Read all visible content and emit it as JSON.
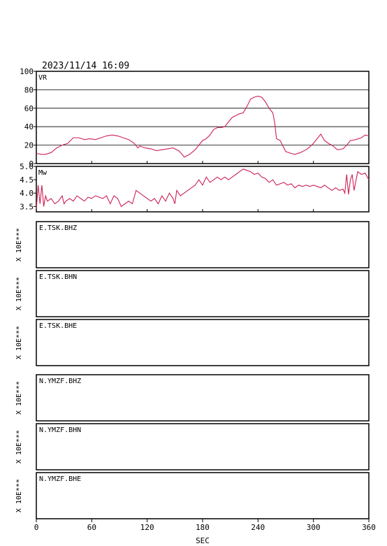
{
  "header": {
    "timestamp": "2023/11/14 16:09"
  },
  "colors": {
    "trace": "#cc2255",
    "frame": "#000000"
  },
  "chart_data": [
    {
      "type": "line",
      "label": "VR",
      "ylim": [
        0,
        100
      ],
      "yticks": [
        {
          "v": 0,
          "t": "0"
        },
        {
          "v": 20,
          "t": "20"
        },
        {
          "v": 40,
          "t": "40"
        },
        {
          "v": 60,
          "t": "60"
        },
        {
          "v": 80,
          "t": "80"
        },
        {
          "v": 100,
          "t": "100"
        }
      ],
      "grid": [
        20,
        40,
        60,
        80
      ],
      "x": [
        0,
        6,
        10,
        16,
        22,
        28,
        34,
        40,
        46,
        52,
        58,
        64,
        70,
        76,
        82,
        88,
        94,
        100,
        106,
        110,
        112,
        118,
        124,
        130,
        136,
        142,
        148,
        154,
        158,
        160,
        166,
        172,
        176,
        180,
        184,
        188,
        192,
        196,
        200,
        204,
        208,
        212,
        216,
        220,
        224,
        228,
        232,
        236,
        240,
        244,
        248,
        252,
        256,
        258,
        260,
        264,
        270,
        276,
        280,
        286,
        292,
        296,
        300,
        304,
        308,
        312,
        316,
        320,
        326,
        332,
        336,
        340,
        346,
        352,
        356,
        360
      ],
      "y": [
        11,
        10,
        10,
        12,
        17,
        20,
        22,
        28,
        28,
        26,
        27,
        26,
        28,
        30,
        31,
        30,
        28,
        26,
        22,
        17,
        19,
        17,
        16,
        14,
        15,
        16,
        17,
        14,
        10,
        7,
        10,
        15,
        20,
        25,
        27,
        31,
        37,
        39,
        39,
        40,
        45,
        50,
        52,
        54,
        55,
        62,
        70,
        72,
        73,
        72,
        67,
        60,
        55,
        45,
        27,
        25,
        13,
        11,
        10,
        12,
        15,
        18,
        22,
        27,
        32,
        25,
        22,
        20,
        15,
        16,
        20,
        25,
        26,
        28,
        31,
        30
      ],
      "xlim": [
        0,
        360
      ]
    },
    {
      "type": "line",
      "label": "Mw",
      "ylim": [
        3.3,
        5.0
      ],
      "yticks": [
        {
          "v": 3.5,
          "t": "3.5"
        },
        {
          "v": 4.0,
          "t": "4.0"
        },
        {
          "v": 4.5,
          "t": "4.5"
        },
        {
          "v": 5.0,
          "t": "5.0"
        }
      ],
      "x": [
        0,
        2,
        4,
        6,
        8,
        10,
        12,
        16,
        20,
        24,
        28,
        30,
        32,
        36,
        40,
        44,
        48,
        52,
        56,
        60,
        64,
        68,
        72,
        76,
        80,
        84,
        88,
        92,
        96,
        100,
        104,
        108,
        112,
        116,
        120,
        124,
        128,
        132,
        136,
        140,
        144,
        148,
        150,
        152,
        156,
        160,
        164,
        168,
        172,
        176,
        180,
        184,
        188,
        192,
        196,
        200,
        204,
        208,
        212,
        216,
        220,
        224,
        228,
        232,
        236,
        240,
        244,
        248,
        252,
        256,
        260,
        264,
        268,
        272,
        276,
        280,
        284,
        288,
        292,
        296,
        300,
        304,
        308,
        312,
        316,
        320,
        324,
        328,
        332,
        334,
        336,
        338,
        340,
        342,
        344,
        348,
        352,
        356,
        360
      ],
      "y": [
        3.4,
        4.3,
        3.6,
        4.3,
        3.5,
        3.9,
        3.7,
        3.8,
        3.6,
        3.7,
        3.9,
        3.6,
        3.7,
        3.8,
        3.7,
        3.9,
        3.8,
        3.7,
        3.85,
        3.8,
        3.9,
        3.85,
        3.8,
        3.9,
        3.6,
        3.9,
        3.8,
        3.5,
        3.6,
        3.7,
        3.6,
        4.1,
        4.0,
        3.9,
        3.8,
        3.7,
        3.8,
        3.6,
        3.9,
        3.7,
        4.0,
        3.8,
        3.6,
        4.1,
        3.9,
        4.0,
        4.1,
        4.2,
        4.3,
        4.5,
        4.3,
        4.6,
        4.4,
        4.5,
        4.6,
        4.5,
        4.6,
        4.5,
        4.6,
        4.7,
        4.8,
        4.9,
        4.85,
        4.8,
        4.7,
        4.75,
        4.6,
        4.55,
        4.4,
        4.5,
        4.3,
        4.35,
        4.4,
        4.3,
        4.35,
        4.2,
        4.3,
        4.25,
        4.3,
        4.25,
        4.3,
        4.25,
        4.2,
        4.3,
        4.2,
        4.1,
        4.2,
        4.1,
        4.15,
        4.0,
        4.7,
        3.95,
        4.5,
        4.7,
        4.1,
        4.8,
        4.7,
        4.75,
        4.5
      ],
      "xlim": [
        0,
        360
      ]
    }
  ],
  "waveforms": [
    {
      "station": "E.TSK.BHZ",
      "scale_label": "X 10E***"
    },
    {
      "station": "E.TSK.BHN",
      "scale_label": "X 10E***"
    },
    {
      "station": "E.TSK.BHE",
      "scale_label": "X 10E***"
    },
    {
      "station": "N.YMZF.BHZ",
      "scale_label": "X 10E***"
    },
    {
      "station": "N.YMZF.BHN",
      "scale_label": "X 10E***"
    },
    {
      "station": "N.YMZF.BHE",
      "scale_label": "X 10E***"
    }
  ],
  "x_axis": {
    "xlabel": "SEC",
    "xlim": [
      0,
      360
    ],
    "ticks": [
      {
        "v": 0,
        "t": "0"
      },
      {
        "v": 60,
        "t": "60"
      },
      {
        "v": 120,
        "t": "120"
      },
      {
        "v": 180,
        "t": "180"
      },
      {
        "v": 240,
        "t": "240"
      },
      {
        "v": 300,
        "t": "300"
      },
      {
        "v": 360,
        "t": "360"
      }
    ]
  }
}
